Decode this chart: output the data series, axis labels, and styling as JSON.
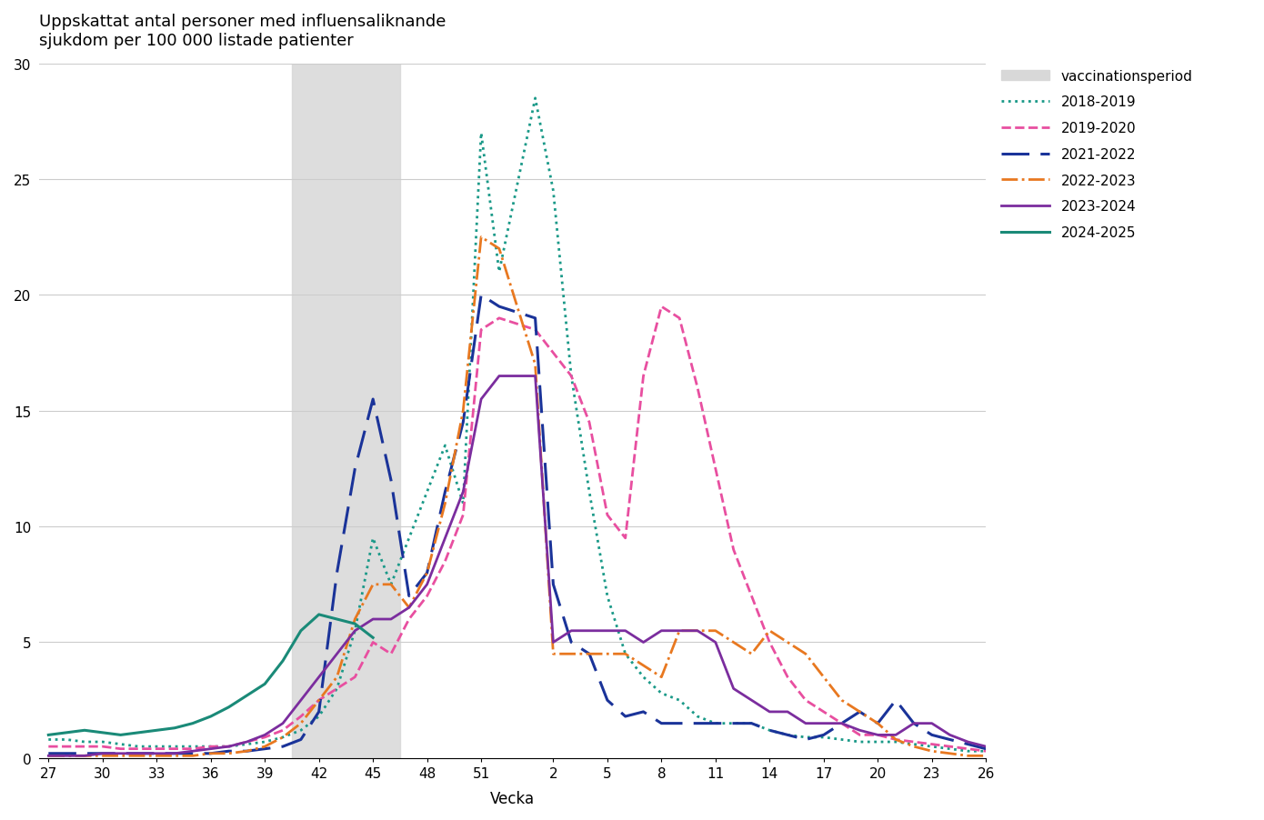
{
  "title": "Uppskattat antal personer med influensaliknande\nsjukdom per 100 000 listade patienter",
  "xlabel": "Vecka",
  "ylim": [
    0,
    30
  ],
  "yticks": [
    0,
    5,
    10,
    15,
    20,
    25,
    30
  ],
  "xtick_labels": [
    "27",
    "30",
    "33",
    "36",
    "39",
    "42",
    "45",
    "48",
    "51",
    "2",
    "5",
    "8",
    "11",
    "14",
    "17",
    "20",
    "23",
    "26"
  ],
  "xtick_weeks": [
    27,
    30,
    33,
    36,
    39,
    42,
    45,
    48,
    51,
    2,
    5,
    8,
    11,
    14,
    17,
    20,
    23,
    26
  ],
  "vaccination_start_week": 41,
  "vaccination_end_week": 46,
  "background_color": "#ffffff",
  "grid_color": "#cccccc",
  "series": [
    {
      "label": "2018-2019",
      "color": "#1a9988",
      "linestyle": "dotted",
      "linewidth": 2.0,
      "weeks": [
        27,
        28,
        29,
        30,
        31,
        32,
        33,
        34,
        35,
        36,
        37,
        38,
        39,
        40,
        41,
        42,
        43,
        44,
        45,
        46,
        47,
        48,
        49,
        50,
        51,
        52,
        1,
        2,
        3,
        4,
        5,
        6,
        7,
        8,
        9,
        10,
        11,
        12,
        13,
        14,
        15,
        16,
        17,
        18,
        19,
        20,
        21,
        22,
        23,
        24,
        25,
        26
      ],
      "values": [
        0.8,
        0.8,
        0.7,
        0.7,
        0.6,
        0.5,
        0.5,
        0.5,
        0.5,
        0.5,
        0.5,
        0.6,
        0.7,
        0.9,
        1.2,
        1.8,
        3.0,
        5.5,
        9.5,
        7.5,
        9.5,
        11.5,
        13.5,
        11.0,
        27.0,
        21.0,
        28.5,
        24.5,
        16.5,
        11.5,
        7.0,
        4.5,
        3.5,
        2.8,
        2.5,
        1.8,
        1.5,
        1.5,
        1.5,
        1.2,
        1.0,
        0.9,
        0.9,
        0.8,
        0.7,
        0.7,
        0.7,
        0.6,
        0.5,
        0.4,
        0.3,
        0.3
      ]
    },
    {
      "label": "2019-2020",
      "color": "#e84fa0",
      "linestyle": "dashed",
      "linewidth": 2.0,
      "weeks": [
        27,
        28,
        29,
        30,
        31,
        32,
        33,
        34,
        35,
        36,
        37,
        38,
        39,
        40,
        41,
        42,
        43,
        44,
        45,
        46,
        47,
        48,
        49,
        50,
        51,
        52,
        1,
        2,
        3,
        4,
        5,
        6,
        7,
        8,
        9,
        10,
        11,
        12,
        13,
        14,
        15,
        16,
        17,
        18,
        19,
        20,
        21,
        22,
        23,
        24,
        25,
        26
      ],
      "values": [
        0.5,
        0.5,
        0.5,
        0.5,
        0.4,
        0.4,
        0.4,
        0.4,
        0.4,
        0.5,
        0.5,
        0.7,
        0.9,
        1.2,
        1.8,
        2.5,
        3.0,
        3.5,
        5.0,
        4.5,
        6.0,
        7.0,
        8.5,
        10.5,
        18.5,
        19.0,
        18.5,
        17.5,
        16.5,
        14.5,
        10.5,
        9.5,
        16.5,
        19.5,
        19.0,
        16.0,
        12.5,
        9.0,
        7.0,
        5.0,
        3.5,
        2.5,
        2.0,
        1.5,
        1.0,
        1.0,
        0.8,
        0.7,
        0.6,
        0.5,
        0.4,
        0.3
      ]
    },
    {
      "label": "2021-2022",
      "color": "#1a3399",
      "linestyle": "dashed",
      "linewidth": 2.2,
      "dash_pattern": [
        10,
        4
      ],
      "weeks": [
        27,
        28,
        29,
        30,
        31,
        32,
        33,
        34,
        35,
        36,
        37,
        38,
        39,
        40,
        41,
        42,
        43,
        44,
        45,
        46,
        47,
        48,
        49,
        50,
        51,
        52,
        1,
        2,
        3,
        4,
        5,
        6,
        7,
        8,
        9,
        10,
        11,
        12,
        13,
        14,
        15,
        16,
        17,
        18,
        19,
        20,
        21,
        22,
        23,
        24,
        25,
        26
      ],
      "values": [
        0.2,
        0.2,
        0.2,
        0.2,
        0.2,
        0.2,
        0.2,
        0.2,
        0.2,
        0.2,
        0.3,
        0.3,
        0.4,
        0.5,
        0.8,
        2.0,
        8.0,
        12.5,
        15.5,
        12.0,
        7.0,
        8.0,
        11.5,
        14.5,
        20.0,
        19.5,
        19.0,
        7.5,
        5.0,
        4.5,
        2.5,
        1.8,
        2.0,
        1.5,
        1.5,
        1.5,
        1.5,
        1.5,
        1.5,
        1.2,
        1.0,
        0.8,
        1.0,
        1.5,
        2.0,
        1.5,
        2.5,
        1.5,
        1.0,
        0.8,
        0.6,
        0.4
      ]
    },
    {
      "label": "2022-2023",
      "color": "#e87820",
      "linestyle": "dashdot",
      "linewidth": 2.0,
      "weeks": [
        27,
        28,
        29,
        30,
        31,
        32,
        33,
        34,
        35,
        36,
        37,
        38,
        39,
        40,
        41,
        42,
        43,
        44,
        45,
        46,
        47,
        48,
        49,
        50,
        51,
        52,
        1,
        2,
        3,
        4,
        5,
        6,
        7,
        8,
        9,
        10,
        11,
        12,
        13,
        14,
        15,
        16,
        17,
        18,
        19,
        20,
        21,
        22,
        23,
        24,
        25,
        26
      ],
      "values": [
        0.1,
        0.1,
        0.1,
        0.1,
        0.1,
        0.1,
        0.1,
        0.1,
        0.1,
        0.2,
        0.2,
        0.3,
        0.5,
        0.9,
        1.5,
        2.5,
        3.5,
        6.0,
        7.5,
        7.5,
        6.5,
        8.0,
        11.0,
        15.0,
        22.5,
        22.0,
        17.0,
        4.5,
        4.5,
        4.5,
        4.5,
        4.5,
        4.0,
        3.5,
        5.5,
        5.5,
        5.5,
        5.0,
        4.5,
        5.5,
        5.0,
        4.5,
        3.5,
        2.5,
        2.0,
        1.5,
        0.8,
        0.5,
        0.3,
        0.2,
        0.1,
        0.1
      ]
    },
    {
      "label": "2023-2024",
      "color": "#7b2d9e",
      "linestyle": "solid",
      "linewidth": 2.0,
      "weeks": [
        27,
        28,
        29,
        30,
        31,
        32,
        33,
        34,
        35,
        36,
        37,
        38,
        39,
        40,
        41,
        42,
        43,
        44,
        45,
        46,
        47,
        48,
        49,
        50,
        51,
        52,
        1,
        2,
        3,
        4,
        5,
        6,
        7,
        8,
        9,
        10,
        11,
        12,
        13,
        14,
        15,
        16,
        17,
        18,
        19,
        20,
        21,
        22,
        23,
        24,
        25,
        26
      ],
      "values": [
        0.1,
        0.1,
        0.1,
        0.2,
        0.2,
        0.2,
        0.2,
        0.2,
        0.3,
        0.4,
        0.5,
        0.7,
        1.0,
        1.5,
        2.5,
        3.5,
        4.5,
        5.5,
        6.0,
        6.0,
        6.5,
        7.5,
        9.5,
        11.5,
        15.5,
        16.5,
        16.5,
        5.0,
        5.5,
        5.5,
        5.5,
        5.5,
        5.0,
        5.5,
        5.5,
        5.5,
        5.0,
        3.0,
        2.5,
        2.0,
        2.0,
        1.5,
        1.5,
        1.5,
        1.2,
        1.0,
        1.0,
        1.5,
        1.5,
        1.0,
        0.7,
        0.5
      ]
    },
    {
      "label": "2024-2025",
      "color": "#1a8a78",
      "linestyle": "solid",
      "linewidth": 2.2,
      "weeks": [
        27,
        28,
        29,
        30,
        31,
        32,
        33,
        34,
        35,
        36,
        37,
        38,
        39,
        40,
        41,
        42,
        43,
        44,
        45
      ],
      "values": [
        1.0,
        1.1,
        1.2,
        1.1,
        1.0,
        1.1,
        1.2,
        1.3,
        1.5,
        1.8,
        2.2,
        2.7,
        3.2,
        4.2,
        5.5,
        6.2,
        6.0,
        5.8,
        5.2
      ]
    }
  ]
}
